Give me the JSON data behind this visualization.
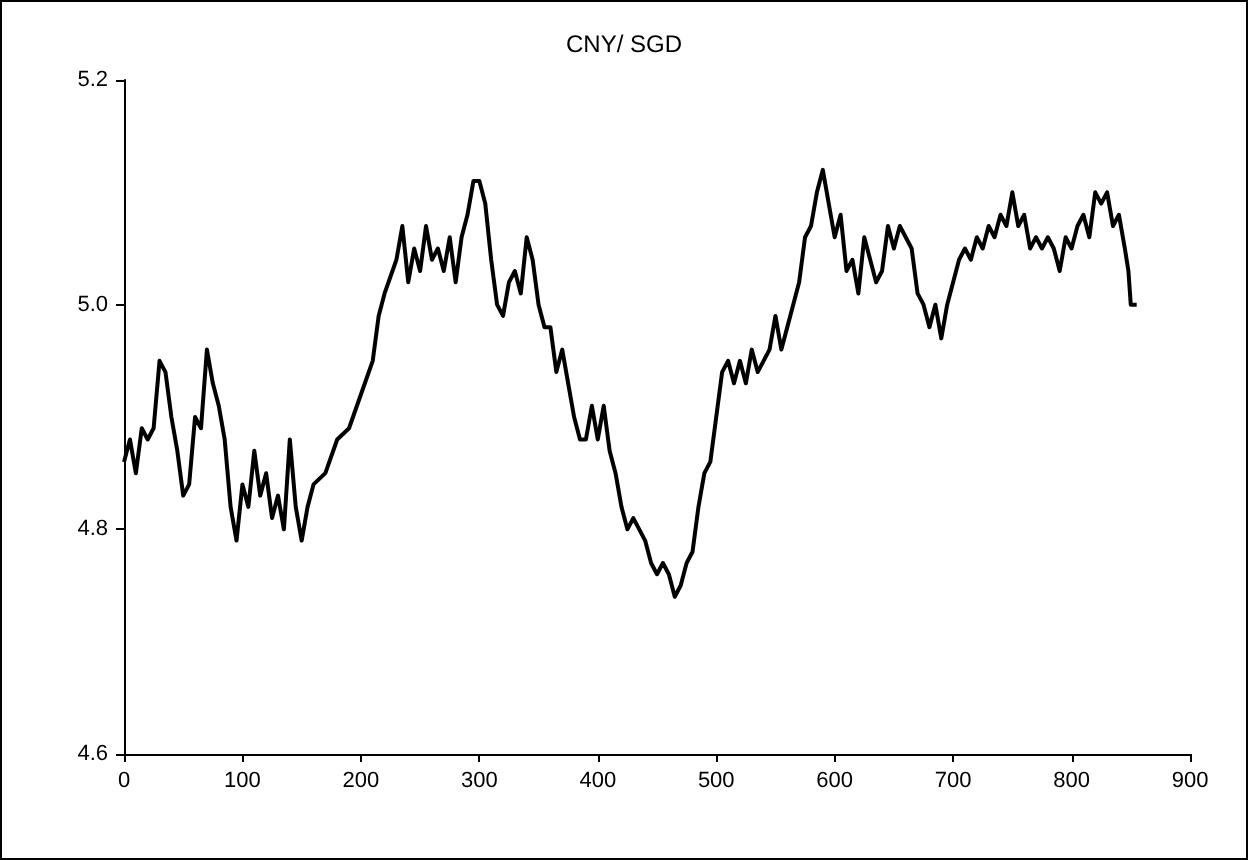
{
  "chart_data": {
    "type": "line",
    "title": "CNY/ SGD",
    "series": [
      {
        "color": "#000000",
        "x": [
          0,
          5,
          10,
          15,
          20,
          25,
          30,
          35,
          40,
          45,
          50,
          55,
          60,
          65,
          70,
          75,
          80,
          85,
          90,
          95,
          100,
          105,
          110,
          115,
          120,
          125,
          130,
          135,
          140,
          145,
          150,
          155,
          160,
          170,
          180,
          190,
          200,
          210,
          215,
          220,
          230,
          235,
          240,
          245,
          250,
          255,
          260,
          265,
          270,
          275,
          280,
          285,
          290,
          295,
          300,
          305,
          310,
          315,
          320,
          325,
          330,
          335,
          340,
          345,
          350,
          355,
          360,
          365,
          370,
          375,
          380,
          385,
          390,
          395,
          400,
          405,
          410,
          415,
          420,
          425,
          430,
          440,
          445,
          450,
          455,
          460,
          465,
          470,
          475,
          480,
          485,
          490,
          495,
          500,
          505,
          510,
          515,
          520,
          525,
          530,
          535,
          540,
          545,
          550,
          555,
          560,
          565,
          570,
          575,
          580,
          585,
          590,
          595,
          600,
          605,
          610,
          615,
          620,
          625,
          630,
          635,
          640,
          645,
          650,
          655,
          660,
          665,
          670,
          675,
          680,
          685,
          690,
          695,
          700,
          705,
          710,
          715,
          720,
          725,
          730,
          735,
          740,
          745,
          750,
          755,
          760,
          765,
          770,
          775,
          780,
          785,
          790,
          795,
          800,
          805,
          810,
          815,
          820,
          825,
          830,
          835,
          840,
          845,
          848,
          850,
          855
        ],
        "values": [
          4.86,
          4.88,
          4.85,
          4.89,
          4.88,
          4.89,
          4.95,
          4.94,
          4.9,
          4.87,
          4.83,
          4.84,
          4.9,
          4.89,
          4.96,
          4.93,
          4.91,
          4.88,
          4.82,
          4.79,
          4.84,
          4.82,
          4.87,
          4.83,
          4.85,
          4.81,
          4.83,
          4.8,
          4.88,
          4.82,
          4.79,
          4.82,
          4.84,
          4.85,
          4.88,
          4.89,
          4.92,
          4.95,
          4.99,
          5.01,
          5.04,
          5.07,
          5.02,
          5.05,
          5.03,
          5.07,
          5.04,
          5.05,
          5.03,
          5.06,
          5.02,
          5.06,
          5.08,
          5.11,
          5.11,
          5.09,
          5.04,
          5.0,
          4.99,
          5.02,
          5.03,
          5.01,
          5.06,
          5.04,
          5.0,
          4.98,
          4.98,
          4.94,
          4.96,
          4.93,
          4.9,
          4.88,
          4.88,
          4.91,
          4.88,
          4.91,
          4.87,
          4.85,
          4.82,
          4.8,
          4.81,
          4.79,
          4.77,
          4.76,
          4.77,
          4.76,
          4.74,
          4.75,
          4.77,
          4.78,
          4.82,
          4.85,
          4.86,
          4.9,
          4.94,
          4.95,
          4.93,
          4.95,
          4.93,
          4.96,
          4.94,
          4.95,
          4.96,
          4.99,
          4.96,
          4.98,
          5.0,
          5.02,
          5.06,
          5.07,
          5.1,
          5.12,
          5.09,
          5.06,
          5.08,
          5.03,
          5.04,
          5.01,
          5.06,
          5.04,
          5.02,
          5.03,
          5.07,
          5.05,
          5.07,
          5.06,
          5.05,
          5.01,
          5.0,
          4.98,
          5.0,
          4.97,
          5.0,
          5.02,
          5.04,
          5.05,
          5.04,
          5.06,
          5.05,
          5.07,
          5.06,
          5.08,
          5.07,
          5.1,
          5.07,
          5.08,
          5.05,
          5.06,
          5.05,
          5.06,
          5.05,
          5.03,
          5.06,
          5.05,
          5.07,
          5.08,
          5.06,
          5.1,
          5.09,
          5.1,
          5.07,
          5.08,
          5.05,
          5.03,
          5.0,
          5.0
        ]
      }
    ],
    "xlim": [
      0,
      900
    ],
    "xticks": [
      0,
      100,
      200,
      300,
      400,
      500,
      600,
      700,
      800,
      900
    ],
    "ylim": [
      4.6,
      5.2
    ],
    "yticks": [
      4.6,
      4.8,
      {
        "value": 5,
        "label": "5.0"
      },
      5.2
    ],
    "grid": false,
    "marker": "none",
    "line_style": "solid"
  }
}
